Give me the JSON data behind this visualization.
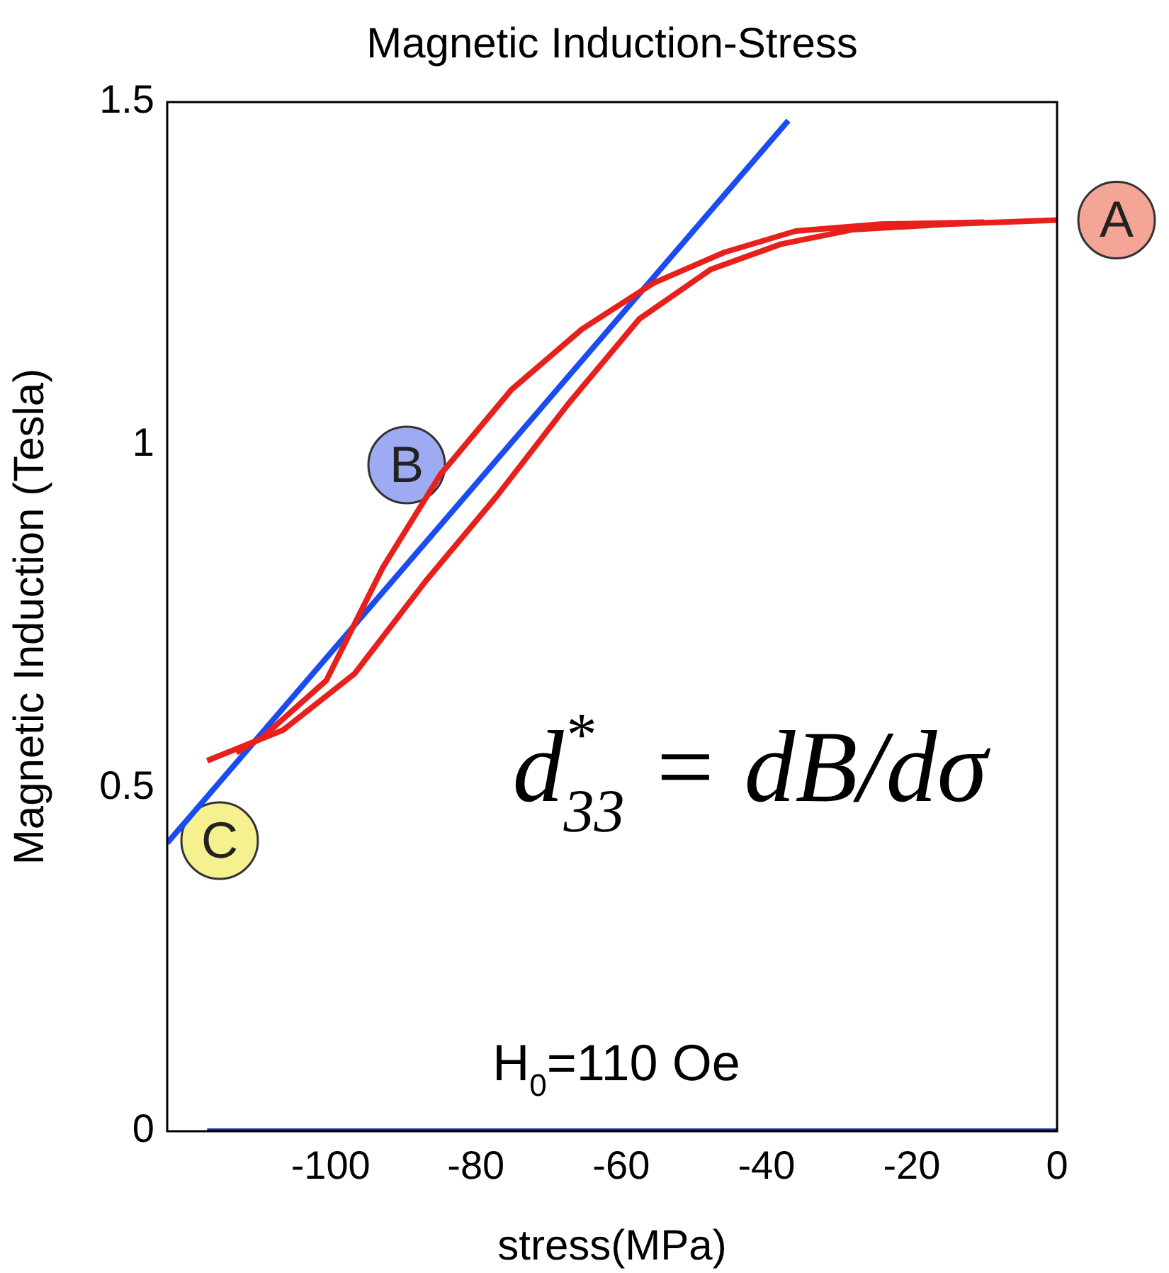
{
  "chart_data": {
    "type": "line",
    "title": "Magnetic Induction-Stress",
    "xlabel": "stress(MPa)",
    "ylabel": "Magnetic Induction (Tesla)",
    "xlim": [
      -122.5,
      0
    ],
    "xticks": [
      -100,
      -80,
      -60,
      -40,
      -20,
      0
    ],
    "ylim": [
      0,
      1.5
    ],
    "yticks": [
      0,
      0.5,
      1,
      1.5
    ],
    "grid": false,
    "legend": false,
    "marker": "none",
    "series": [
      {
        "color": "#e8201c",
        "x": [
          -117,
          -106.5,
          -96.7,
          -86.9,
          -77.1,
          -67.3,
          -57.5,
          -47.7,
          -38,
          -28.2,
          -15,
          0
        ],
        "values": [
          0.54,
          0.585,
          0.667,
          0.802,
          0.926,
          1.06,
          1.184,
          1.256,
          1.293,
          1.314,
          1.322,
          1.328
        ]
      },
      {
        "color": "#e8201c",
        "x": [
          -113,
          -109.4,
          -100.6,
          -92.8,
          -84.9,
          -75.1,
          -65.4,
          -55.6,
          -45.8,
          -36,
          -24.3,
          -10
        ],
        "values": [
          0.552,
          0.574,
          0.657,
          0.822,
          0.957,
          1.081,
          1.169,
          1.236,
          1.281,
          1.312,
          1.322,
          1.325
        ]
      },
      {
        "color": "#1a4cf0",
        "x": [
          -122.5,
          -37
        ],
        "values": [
          0.42,
          1.473
        ]
      },
      {
        "color": "#1a2ab0",
        "x": [
          -117,
          0
        ],
        "values": [
          0,
          0
        ]
      }
    ],
    "annotations": [
      {
        "text": "A",
        "x": 0,
        "y": 1.328
      },
      "B",
      "C",
      "d$^{*}$$_{33}$ = dB/dσ",
      "H$_{0}$=110 Oe"
    ]
  }
}
